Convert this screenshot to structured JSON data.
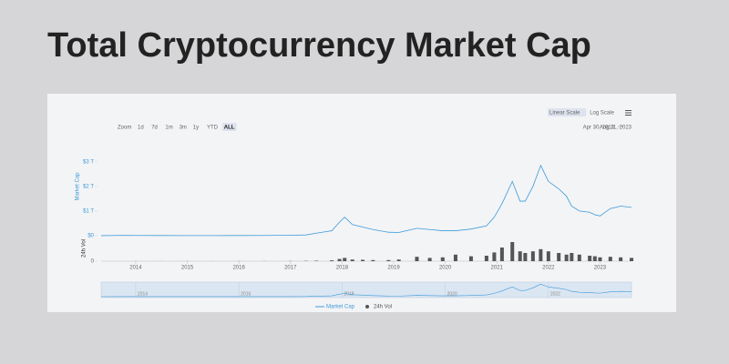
{
  "chart_data": {
    "type": "line",
    "title": "Total Cryptocurrency Market Cap",
    "y_label": "Market Cap",
    "y2_label": "24h Vol",
    "zoom_label": "Zoom",
    "zoom_buttons": [
      "1d",
      "7d",
      "1m",
      "3m",
      "1y",
      "YTD",
      "ALL"
    ],
    "scale_buttons": [
      "Linear Scale",
      "Log Scale"
    ],
    "date_range": [
      "Apr 30, 2013",
      "Aug 11, 2023"
    ],
    "x": [
      2013.33,
      2013.8,
      2014.0,
      2014.5,
      2015.0,
      2015.5,
      2016.0,
      2016.5,
      2017.0,
      2017.3,
      2017.5,
      2017.8,
      2017.95,
      2018.05,
      2018.2,
      2018.4,
      2018.6,
      2018.9,
      2019.1,
      2019.45,
      2019.7,
      2019.95,
      2020.2,
      2020.5,
      2020.8,
      2020.95,
      2021.1,
      2021.3,
      2021.45,
      2021.55,
      2021.7,
      2021.85,
      2022.0,
      2022.2,
      2022.35,
      2022.45,
      2022.6,
      2022.8,
      2022.9,
      2023.0,
      2023.2,
      2023.4,
      2023.61
    ],
    "xlim": [
      2013.33,
      2023.61
    ],
    "xticks": [
      2014,
      2015,
      2016,
      2017,
      2018,
      2019,
      2020,
      2021,
      2022,
      2023
    ],
    "ylim": [
      0,
      3.1
    ],
    "yticks": [
      {
        "value": 0,
        "label": "$0"
      },
      {
        "value": 1,
        "label": "$1 T"
      },
      {
        "value": 2,
        "label": "$2 T"
      },
      {
        "value": 3,
        "label": "$3 T"
      }
    ],
    "y2lim": [
      0,
      400
    ],
    "y2ticks": [
      0
    ],
    "navigator_ticks": [
      2014,
      2016,
      2018,
      2020,
      2022
    ],
    "series": [
      {
        "name": "Market Cap",
        "color": "#3d9ad9",
        "values": [
          0.002,
          0.012,
          0.01,
          0.007,
          0.005,
          0.004,
          0.007,
          0.01,
          0.018,
          0.03,
          0.1,
          0.2,
          0.55,
          0.75,
          0.45,
          0.35,
          0.25,
          0.14,
          0.13,
          0.3,
          0.25,
          0.2,
          0.2,
          0.27,
          0.4,
          0.75,
          1.3,
          2.2,
          1.4,
          1.4,
          2.0,
          2.85,
          2.2,
          1.9,
          1.6,
          1.2,
          1.0,
          0.95,
          0.85,
          0.8,
          1.1,
          1.2,
          1.15
        ]
      },
      {
        "name": "24h Vol",
        "color": "#555555",
        "type": "bar",
        "axis": "y2",
        "values": [
          0,
          0,
          1,
          1,
          1,
          1,
          2,
          2,
          3,
          5,
          8,
          15,
          40,
          60,
          30,
          25,
          20,
          20,
          30,
          80,
          60,
          70,
          120,
          90,
          100,
          160,
          250,
          350,
          180,
          150,
          180,
          220,
          180,
          150,
          120,
          150,
          120,
          100,
          90,
          70,
          80,
          70,
          60
        ]
      }
    ]
  }
}
